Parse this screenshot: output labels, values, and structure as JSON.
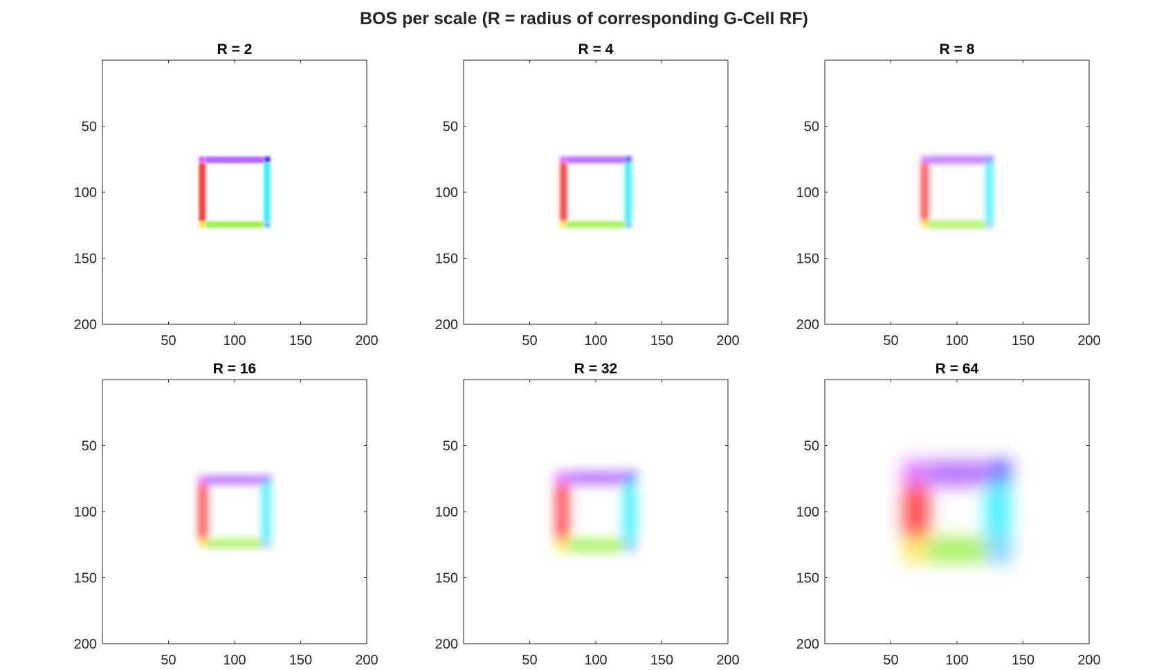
{
  "figure": {
    "title": "BOS per scale (R = radius of corresponding G-Cell RF)"
  },
  "chart_data": {
    "type": "heatmap",
    "title": "BOS per scale (R = radius of corresponding G-Cell RF)",
    "grid": false,
    "panels": [
      {
        "title": "R = 2",
        "radius": 2,
        "blur": 1.0,
        "band": 5,
        "outer": [
          73,
          127,
          73,
          127
        ],
        "xlim": [
          0,
          200
        ],
        "ylim": [
          200,
          0
        ]
      },
      {
        "title": "R = 4",
        "radius": 4,
        "blur": 1.6,
        "band": 5,
        "outer": [
          73,
          127,
          73,
          127
        ],
        "xlim": [
          0,
          200
        ],
        "ylim": [
          200,
          0
        ]
      },
      {
        "title": "R = 8",
        "radius": 8,
        "blur": 2.2,
        "band": 5,
        "outer": [
          73,
          127,
          73,
          127
        ],
        "xlim": [
          0,
          200
        ],
        "ylim": [
          200,
          0
        ]
      },
      {
        "title": "R = 16",
        "radius": 16,
        "blur": 3.0,
        "band": 6,
        "outer": [
          73,
          127,
          73,
          127
        ],
        "xlim": [
          0,
          200
        ],
        "ylim": [
          200,
          0
        ]
      },
      {
        "title": "R = 32",
        "radius": 32,
        "blur": 4.5,
        "band": 9,
        "outer": [
          70,
          130,
          70,
          130
        ],
        "xlim": [
          0,
          200
        ],
        "ylim": [
          200,
          0
        ]
      },
      {
        "title": "R = 64",
        "radius": 64,
        "blur": 7.0,
        "band": 18,
        "outer": [
          60,
          140,
          62,
          138
        ],
        "xlim": [
          0,
          200
        ],
        "ylim": [
          200,
          0
        ]
      }
    ],
    "x_ticks": [
      "50",
      "100",
      "150",
      "200"
    ],
    "x_tick_values": [
      50,
      100,
      150,
      200
    ],
    "y_ticks": [
      "50",
      "100",
      "150",
      "200"
    ],
    "y_tick_values": [
      50,
      100,
      150,
      200
    ],
    "edge_colors": {
      "left": "#ff3333",
      "top": "#aa55ff",
      "right": "#33eeff",
      "bottom": "#99ee44"
    },
    "corner_colors": {
      "top_right": "#2211ff",
      "top_left": "#cc22ff",
      "bottom_left": "#ffdd00",
      "bottom_right": "#22aaff"
    },
    "axes_color": "#262626"
  }
}
